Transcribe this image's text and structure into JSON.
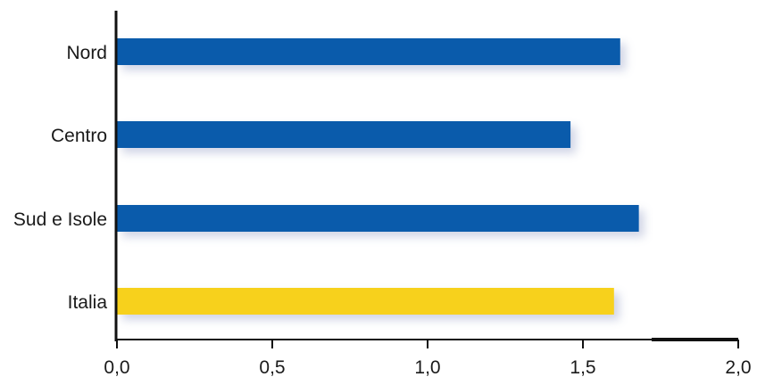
{
  "chart_data": {
    "type": "bar",
    "orientation": "horizontal",
    "categories": [
      "Nord",
      "Centro",
      "Sud e Isole",
      "Italia"
    ],
    "values": [
      1.62,
      1.46,
      1.68,
      1.6
    ],
    "colors": [
      "#0a5bab",
      "#0a5bab",
      "#0a5bab",
      "#f7d11c"
    ],
    "title": "",
    "xlabel": "",
    "ylabel": "",
    "xlim": [
      0,
      2
    ],
    "xticks": [
      0,
      0.5,
      1,
      1.5,
      2
    ],
    "xtick_labels": [
      "0,0",
      "0,5",
      "1,0",
      "1,5",
      "2,0"
    ],
    "grid": false,
    "legend": "none"
  }
}
